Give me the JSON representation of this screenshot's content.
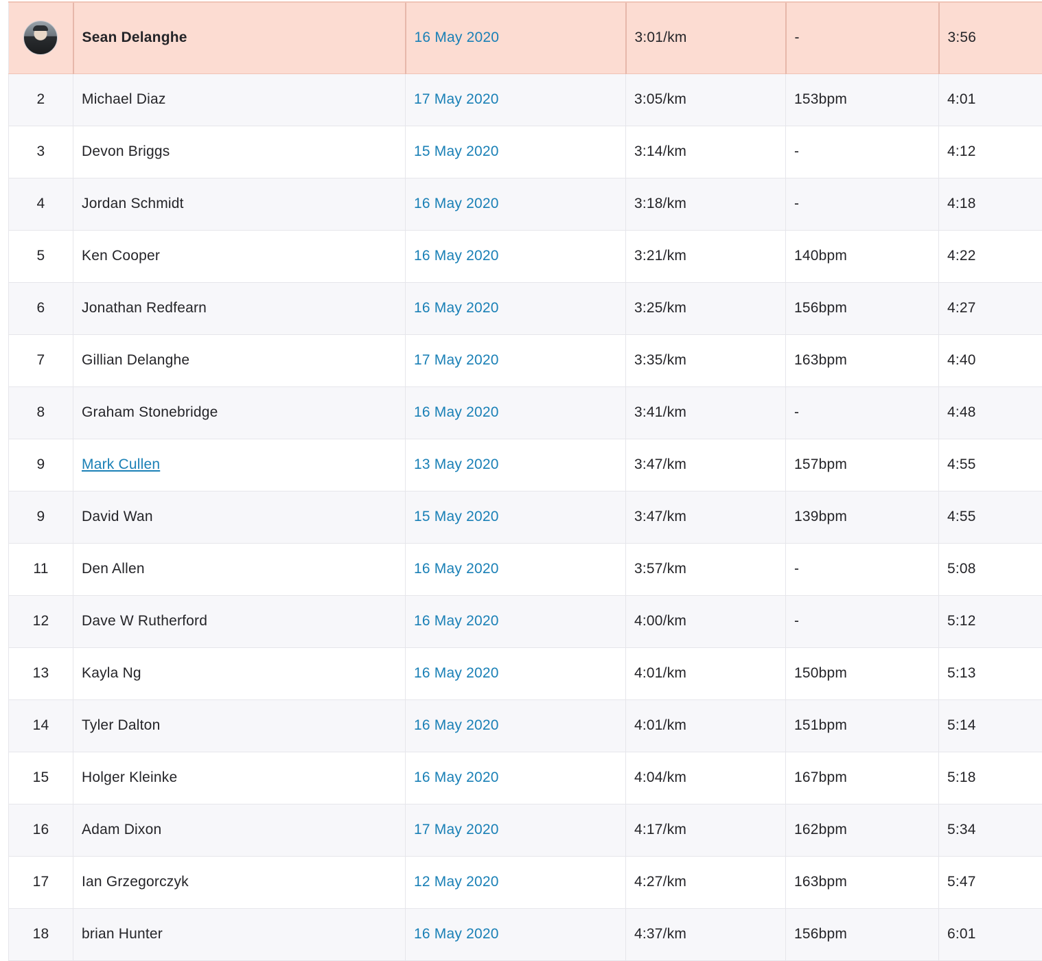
{
  "leaderboard": {
    "rows": [
      {
        "rank": "",
        "name": "Sean Delanghe",
        "date": "16 May 2020",
        "pace": "3:01/km",
        "hr": "-",
        "time": "3:56",
        "highlight": true,
        "avatar": true
      },
      {
        "rank": "2",
        "name": "Michael Diaz",
        "date": "17 May 2020",
        "pace": "3:05/km",
        "hr": "153bpm",
        "time": "4:01"
      },
      {
        "rank": "3",
        "name": "Devon Briggs",
        "date": "15 May 2020",
        "pace": "3:14/km",
        "hr": "-",
        "time": "4:12"
      },
      {
        "rank": "4",
        "name": "Jordan Schmidt",
        "date": "16 May 2020",
        "pace": "3:18/km",
        "hr": "-",
        "time": "4:18"
      },
      {
        "rank": "5",
        "name": "Ken Cooper",
        "date": "16 May 2020",
        "pace": "3:21/km",
        "hr": "140bpm",
        "time": "4:22"
      },
      {
        "rank": "6",
        "name": "Jonathan Redfearn",
        "date": "16 May 2020",
        "pace": "3:25/km",
        "hr": "156bpm",
        "time": "4:27"
      },
      {
        "rank": "7",
        "name": "Gillian Delanghe",
        "date": "17 May 2020",
        "pace": "3:35/km",
        "hr": "163bpm",
        "time": "4:40"
      },
      {
        "rank": "8",
        "name": "Graham Stonebridge",
        "date": "16 May 2020",
        "pace": "3:41/km",
        "hr": "-",
        "time": "4:48"
      },
      {
        "rank": "9",
        "name": "Mark Cullen",
        "date": "13 May 2020",
        "pace": "3:47/km",
        "hr": "157bpm",
        "time": "4:55",
        "link": true
      },
      {
        "rank": "9",
        "name": "David Wan",
        "date": "15 May 2020",
        "pace": "3:47/km",
        "hr": "139bpm",
        "time": "4:55"
      },
      {
        "rank": "11",
        "name": "Den Allen",
        "date": "16 May 2020",
        "pace": "3:57/km",
        "hr": "-",
        "time": "5:08"
      },
      {
        "rank": "12",
        "name": "Dave W Rutherford",
        "date": "16 May 2020",
        "pace": "4:00/km",
        "hr": "-",
        "time": "5:12"
      },
      {
        "rank": "13",
        "name": "Kayla Ng",
        "date": "16 May 2020",
        "pace": "4:01/km",
        "hr": "150bpm",
        "time": "5:13"
      },
      {
        "rank": "14",
        "name": "Tyler Dalton",
        "date": "16 May 2020",
        "pace": "4:01/km",
        "hr": "151bpm",
        "time": "5:14"
      },
      {
        "rank": "15",
        "name": "Holger Kleinke",
        "date": "16 May 2020",
        "pace": "4:04/km",
        "hr": "167bpm",
        "time": "5:18"
      },
      {
        "rank": "16",
        "name": "Adam Dixon",
        "date": "17 May 2020",
        "pace": "4:17/km",
        "hr": "162bpm",
        "time": "5:34"
      },
      {
        "rank": "17",
        "name": "Ian Grzegorczyk",
        "date": "12 May 2020",
        "pace": "4:27/km",
        "hr": "163bpm",
        "time": "5:47"
      },
      {
        "rank": "18",
        "name": "brian Hunter",
        "date": "16 May 2020",
        "pace": "4:37/km",
        "hr": "156bpm",
        "time": "6:01"
      }
    ]
  },
  "colors": {
    "highlight_row": "#fcdcd2",
    "link": "#1a80b6",
    "shaded_row": "#f7f7fa",
    "text": "#242428"
  },
  "icons": {
    "avatar": "athlete-avatar-icon"
  }
}
